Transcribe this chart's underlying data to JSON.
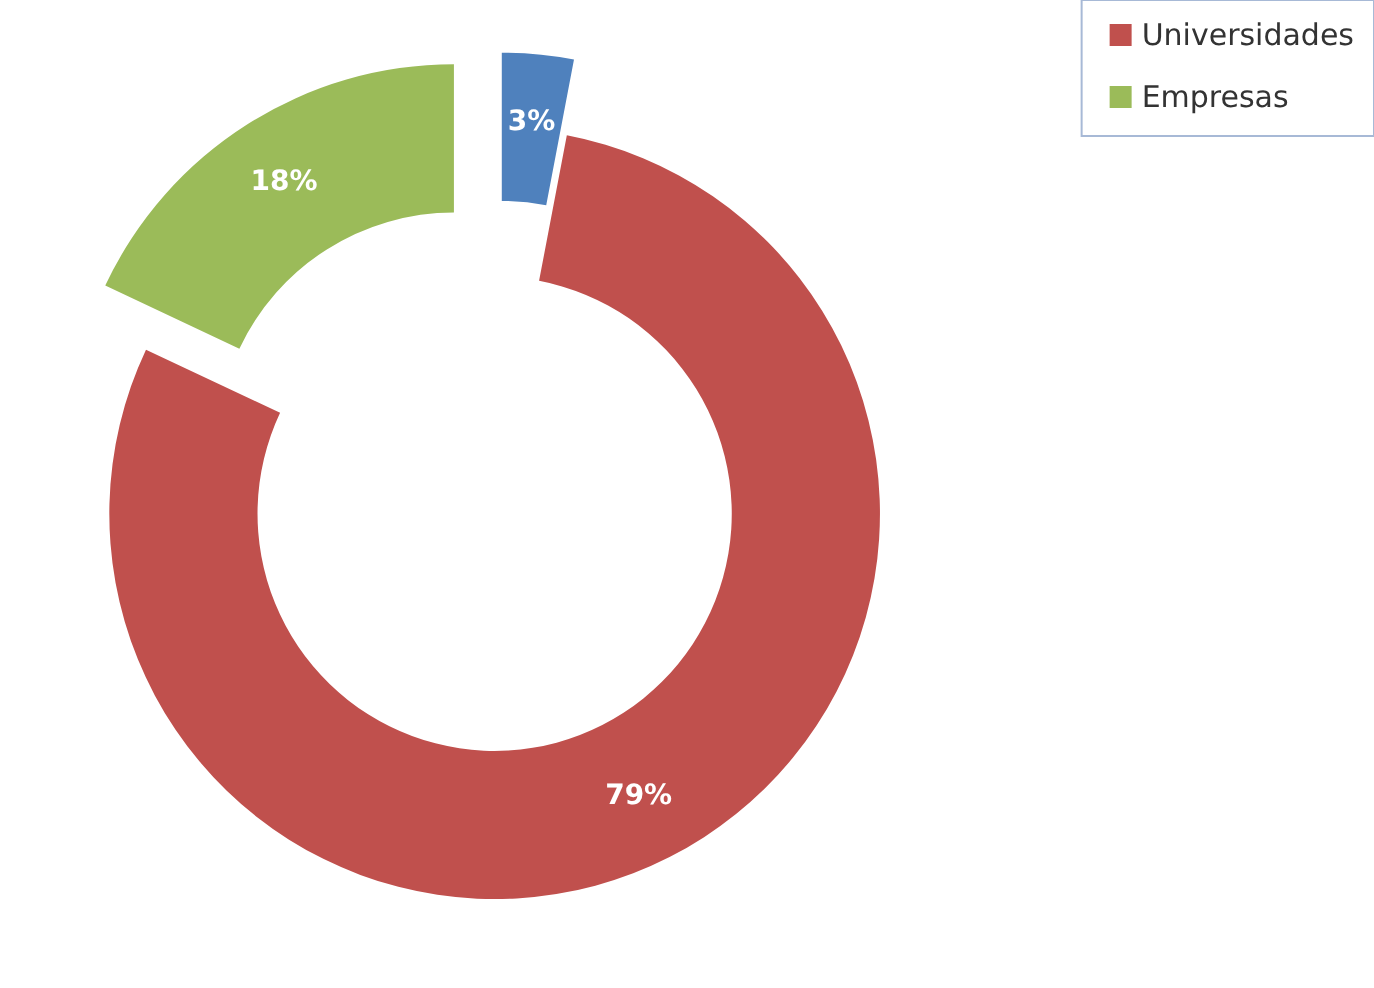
{
  "chart_data": {
    "type": "donut",
    "categories": [
      null,
      "Universidades",
      "Empresas"
    ],
    "values": [
      3,
      79,
      18
    ],
    "colors": [
      "#4f81bd",
      "#c0504d",
      "#9bbb59"
    ],
    "value_labels": [
      "3%",
      "79%",
      "18%"
    ],
    "legend": "top right"
  }
}
